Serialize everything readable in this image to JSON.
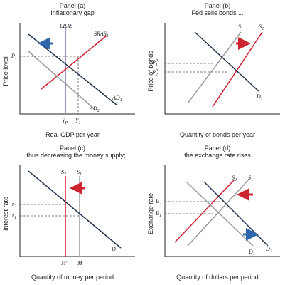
{
  "colors": {
    "navy": "#1f3350",
    "red": "#d1202f",
    "light_red": "#ee8a93",
    "gray": "#9a9a9a",
    "purple": "#8b62b5",
    "arrow_blue": "#2f67ad",
    "arrow_red": "#cc2530"
  },
  "panel_a": {
    "heading": "Panel (a)",
    "subheading": "Inflationary gap",
    "y_label": "Price level",
    "x_label": "Real GDP per year",
    "lras": "LRAS",
    "sras": "SRAS",
    "sras_sub": "1",
    "ad1": "AD",
    "ad1_sub": "1",
    "ad2": "AD",
    "ad2_sub": "2",
    "p1": "P",
    "p1_sub": "1",
    "yp": "Y",
    "yp_sub": "P",
    "y1": "Y",
    "y1_sub": "1"
  },
  "panel_b": {
    "heading": "Panel (b)",
    "subheading": "Fed sells bonds ...",
    "y_label": "Price of bonds",
    "x_label": "Quantity of bonds per year",
    "s1": "S",
    "s1_sub": "1",
    "s2": "S",
    "s2_sub": "2",
    "d1": "D",
    "d1_sub": "1",
    "pb1": "P",
    "pb1_sup": "b",
    "pb1_sub": "1",
    "pb2": "P",
    "pb2_sup": "b",
    "pb2_sub": "2"
  },
  "panel_c": {
    "heading": "Panel (c)",
    "subheading": "... thus decreasing the money supply;",
    "y_label": "Interest rate",
    "x_label": "Quantity of money per period",
    "s2": "S",
    "s2_sub": "2",
    "s1": "S",
    "s1_sub": "1",
    "d1": "D",
    "d1_sub": "1",
    "r2": "r",
    "r2_sub": "2",
    "r1": "r",
    "r1_sub": "1",
    "m_prime": "M'",
    "m": "M"
  },
  "panel_d": {
    "heading": "Panel (d)",
    "subheading": "the exchange rate rises",
    "y_label": "Exchange rate",
    "x_label": "Quantity of dollars per period",
    "s2": "S",
    "s2_sub": "2",
    "s1": "S",
    "s1_sub": "1",
    "d1": "D",
    "d1_sub": "1",
    "d2": "D",
    "d2_sub": "2",
    "e2": "E",
    "e2_sub": "2",
    "e1": "E",
    "e1_sub": "1"
  }
}
